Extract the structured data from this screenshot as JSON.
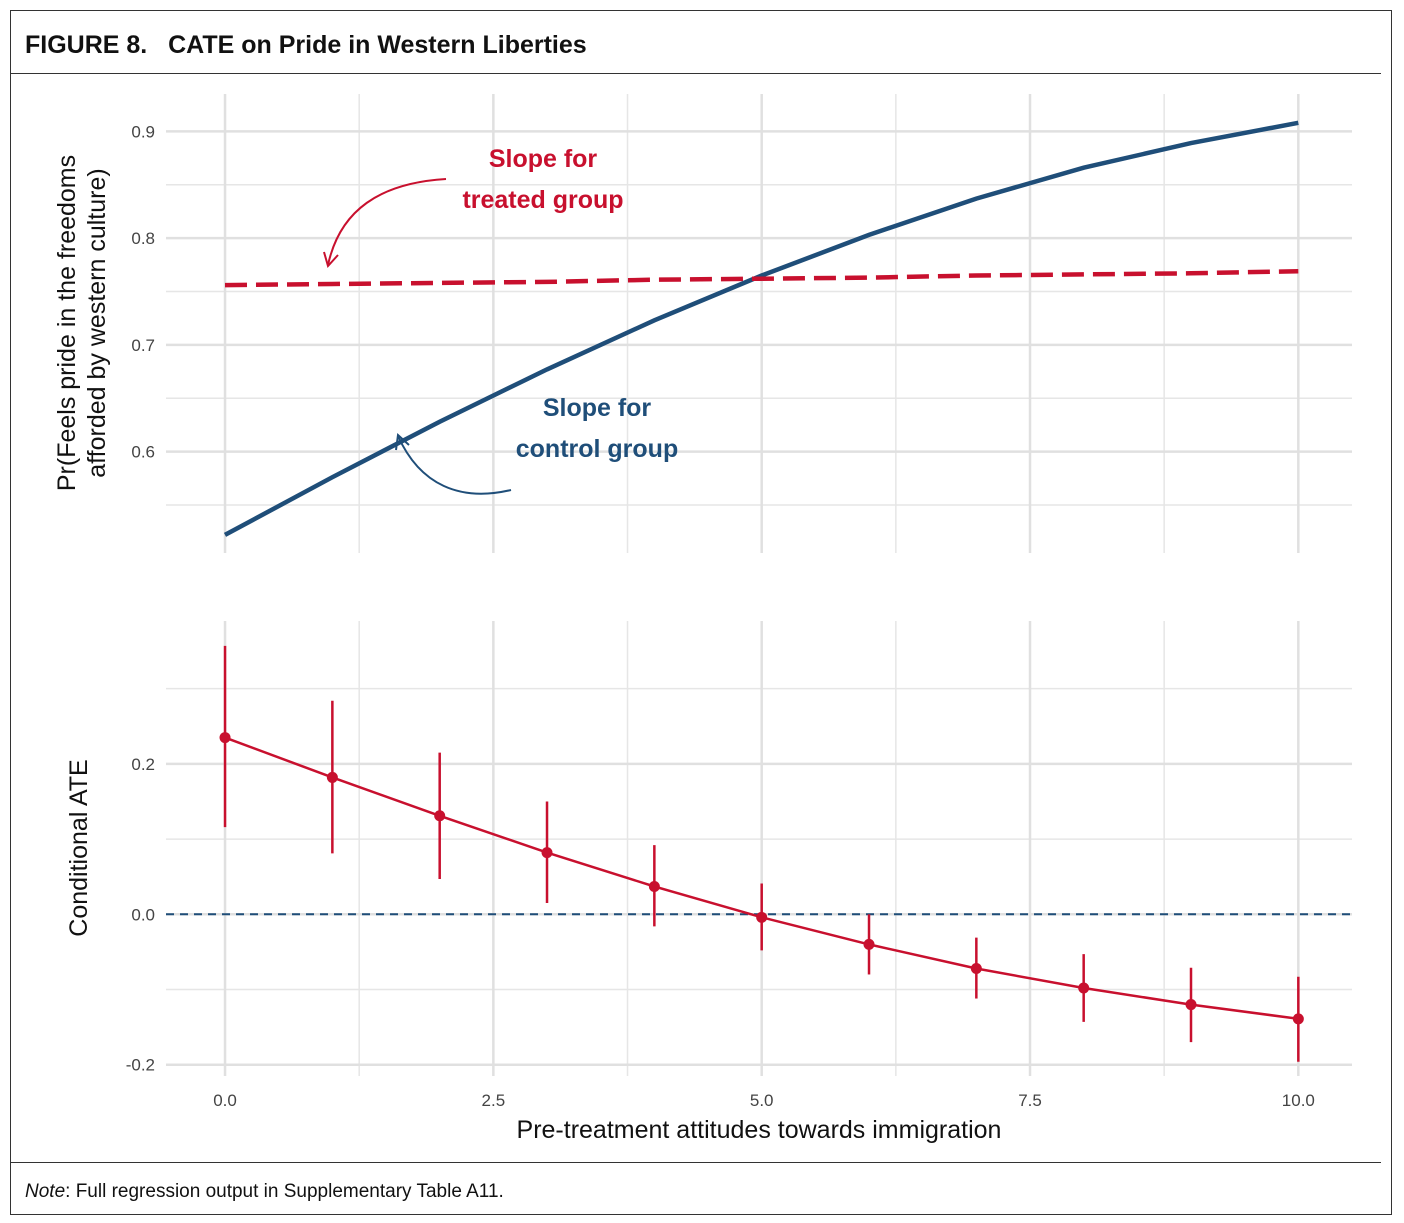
{
  "figure": {
    "label": "FIGURE 8.",
    "title": "CATE on Pride in Western Liberties",
    "note_prefix": "Note",
    "note_text": ": Full regression output in Supplementary Table A11."
  },
  "colors": {
    "treated": "#c8102e",
    "control": "#1f4e79",
    "grid": "#e6e6e6"
  },
  "chart_data": [
    {
      "type": "line",
      "panel": "top",
      "ylabel_line1": "Pr(Feels pride in the freedoms",
      "ylabel_line2": "afforded by western culture)",
      "xlim": [
        -0.55,
        10.5
      ],
      "ylim": [
        0.505,
        0.935
      ],
      "yticks": [
        0.6,
        0.7,
        0.8,
        0.9
      ],
      "ytick_labels": [
        "0.6",
        "0.7",
        "0.8",
        "0.9"
      ],
      "xticks": [
        0,
        2.5,
        5,
        7.5,
        10
      ],
      "grid": true,
      "series": [
        {
          "role": "treated",
          "style": "dashed",
          "x": [
            0,
            1,
            2,
            3,
            4,
            5,
            6,
            7,
            8,
            9,
            10
          ],
          "y": [
            0.756,
            0.757,
            0.758,
            0.759,
            0.761,
            0.762,
            0.763,
            0.765,
            0.766,
            0.767,
            0.769
          ]
        },
        {
          "role": "control",
          "style": "solid",
          "x": [
            0,
            1,
            2,
            3,
            4,
            5,
            6,
            7,
            8,
            9,
            10
          ],
          "y": [
            0.522,
            0.576,
            0.628,
            0.677,
            0.723,
            0.765,
            0.803,
            0.837,
            0.866,
            0.889,
            0.908
          ]
        }
      ],
      "annotations": [
        {
          "role": "treated",
          "line1": "Slope for",
          "line2": "treated group"
        },
        {
          "role": "control",
          "line1": "Slope for",
          "line2": "control group"
        }
      ]
    },
    {
      "type": "line",
      "panel": "bottom",
      "ylabel": "Conditional ATE",
      "xlabel": "Pre-treatment attitudes towards immigration",
      "xlim": [
        -0.55,
        10.5
      ],
      "ylim": [
        -0.215,
        0.39
      ],
      "yticks": [
        -0.2,
        0.0,
        0.2
      ],
      "ytick_labels": [
        "-0.2",
        "0.0",
        "0.2"
      ],
      "xticks": [
        0,
        2.5,
        5,
        7.5,
        10
      ],
      "xtick_labels": [
        "0.0",
        "2.5",
        "5.0",
        "7.5",
        "10.0"
      ],
      "grid": true,
      "reference_line": 0.0,
      "series": [
        {
          "role": "cate",
          "x": [
            0,
            1,
            2,
            3,
            4,
            5,
            6,
            7,
            8,
            9,
            10
          ],
          "y": [
            0.235,
            0.182,
            0.131,
            0.082,
            0.037,
            -0.004,
            -0.04,
            -0.072,
            -0.098,
            -0.12,
            -0.139
          ],
          "lower": [
            0.116,
            0.081,
            0.047,
            0.015,
            -0.016,
            -0.048,
            -0.08,
            -0.112,
            -0.143,
            -0.17,
            -0.196
          ],
          "upper": [
            0.357,
            0.284,
            0.215,
            0.15,
            0.092,
            0.041,
            0.0,
            -0.031,
            -0.053,
            -0.071,
            -0.083
          ]
        }
      ]
    }
  ]
}
